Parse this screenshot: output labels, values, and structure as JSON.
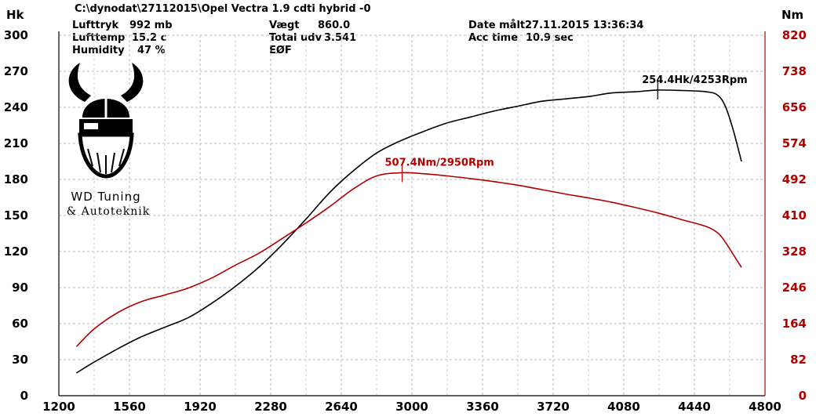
{
  "header": {
    "path": "C:\\dynodat\\27112015\\Opel Vectra 1.9 cdti hybrid -0",
    "left": [
      {
        "label": "Lufttryk",
        "value": "992 mb"
      },
      {
        "label": "Lufttemp",
        "value": "15.2 c"
      },
      {
        "label": "Humidity",
        "value": "47 %"
      }
    ],
    "mid": [
      {
        "label": "Vægt",
        "value": "860.0"
      },
      {
        "label": "Total udv",
        "value": "3.541"
      },
      {
        "label": "EØF",
        "value": ""
      }
    ],
    "right": [
      {
        "label": "Date målt",
        "value": "27.11.2015 13:36:34"
      },
      {
        "label": "Acc time",
        "value": "10.9 sec"
      }
    ]
  },
  "logo": {
    "line1": "WD Tuning",
    "line2": "& Autoteknik"
  },
  "chart_data": {
    "type": "line",
    "x_ticks": [
      1200,
      1560,
      1920,
      2280,
      2640,
      3000,
      3360,
      3720,
      4080,
      4440,
      4800
    ],
    "xlim": [
      1200,
      4800
    ],
    "left_axis": {
      "title": "Hk",
      "ticks": [
        0,
        30,
        60,
        90,
        120,
        150,
        180,
        210,
        240,
        270,
        300
      ],
      "ylim": [
        0,
        300
      ],
      "color": "#000000"
    },
    "right_axis": {
      "title": "Nm",
      "ticks": [
        0,
        82,
        164,
        246,
        328,
        410,
        492,
        574,
        656,
        738,
        820
      ],
      "ylim": [
        0,
        820
      ],
      "color": "#b00000"
    },
    "grid": true,
    "series": [
      {
        "axis": "left",
        "color": "#000000",
        "x": [
          1290,
          1380,
          1500,
          1620,
          1740,
          1860,
          1980,
          2100,
          2220,
          2340,
          2460,
          2580,
          2700,
          2820,
          2940,
          3060,
          3180,
          3300,
          3420,
          3540,
          3660,
          3780,
          3900,
          4020,
          4140,
          4253,
          4380,
          4500,
          4560,
          4600,
          4640,
          4680
        ],
        "y": [
          19,
          28,
          39,
          49,
          57,
          65,
          77,
          91,
          107,
          126,
          147,
          169,
          187,
          202,
          212,
          220,
          227,
          232,
          237,
          241,
          245,
          247,
          249,
          252,
          253,
          254.4,
          254,
          253,
          250,
          240,
          220,
          195
        ]
      },
      {
        "axis": "right",
        "color": "#b00000",
        "x": [
          1290,
          1380,
          1500,
          1620,
          1740,
          1860,
          1980,
          2100,
          2220,
          2340,
          2460,
          2580,
          2700,
          2820,
          2950,
          3060,
          3180,
          3300,
          3420,
          3540,
          3660,
          3780,
          3900,
          4020,
          4140,
          4260,
          4380,
          4500,
          4560,
          4600,
          4640,
          4680
        ],
        "y": [
          112,
          152,
          189,
          214,
          229,
          245,
          268,
          297,
          324,
          358,
          393,
          430,
          470,
          500,
          507.4,
          505,
          500,
          494,
          487,
          479,
          469,
          459,
          450,
          440,
          428,
          415,
          400,
          385,
          370,
          348,
          320,
          292
        ]
      }
    ],
    "annotations": [
      {
        "text": "254.4Hk/4253Rpm",
        "axis": "left",
        "x": 4253,
        "y": 254.4,
        "color": "#000000"
      },
      {
        "text": "507.4Nm/2950Rpm",
        "axis": "right",
        "x": 2950,
        "y": 507.4,
        "color": "#b00000"
      }
    ]
  }
}
